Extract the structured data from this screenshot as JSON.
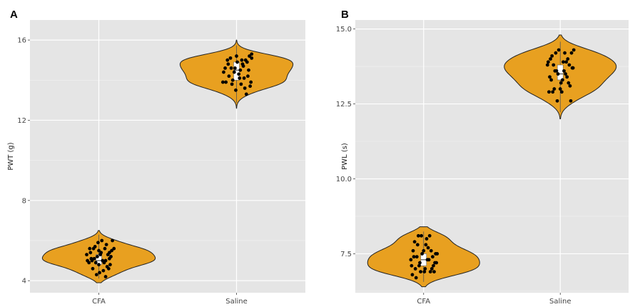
{
  "chart_data": [
    {
      "panel": "A",
      "type": "violin",
      "ylabel": "PWT (g)",
      "xlabel": "",
      "categories": [
        "CFA",
        "Saline"
      ],
      "ylim": [
        3.4,
        17.0
      ],
      "yticks": [
        4,
        8,
        12,
        16
      ],
      "ytick_labels": [
        "4",
        "8",
        "12",
        "16"
      ],
      "grid": true,
      "fill_color": "#e8a020",
      "groups": [
        {
          "name": "CFA",
          "violin_range": [
            3.9,
            6.5
          ],
          "box": {
            "q1": 4.8,
            "median": 5.0,
            "q3": 5.3
          },
          "points": [
            [
              -0.16,
              5.3
            ],
            [
              -0.1,
              5.1
            ],
            [
              -0.07,
              5.6
            ],
            [
              -0.04,
              4.9
            ],
            [
              -0.02,
              5.2
            ],
            [
              0.0,
              4.8
            ],
            [
              0.03,
              5.4
            ],
            [
              0.05,
              5.0
            ],
            [
              0.08,
              5.6
            ],
            [
              0.11,
              4.7
            ],
            [
              0.14,
              5.1
            ],
            [
              0.17,
              5.5
            ],
            [
              -0.13,
              4.9
            ],
            [
              -0.08,
              4.6
            ],
            [
              -0.05,
              5.7
            ],
            [
              0.02,
              5.3
            ],
            [
              0.06,
              4.5
            ],
            [
              0.1,
              5.8
            ],
            [
              0.13,
              4.6
            ],
            [
              0.16,
              5.2
            ],
            [
              -0.15,
              5.0
            ],
            [
              -0.11,
              5.4
            ],
            [
              -0.01,
              5.9
            ],
            [
              0.04,
              6.0
            ],
            [
              0.09,
              5.0
            ],
            [
              0.12,
              5.3
            ],
            [
              -0.06,
              5.1
            ],
            [
              0.01,
              4.4
            ],
            [
              0.07,
              4.9
            ],
            [
              0.15,
              4.8
            ],
            [
              0.18,
              6.0
            ],
            [
              -0.03,
              4.3
            ],
            [
              0.2,
              5.6
            ],
            [
              -0.12,
              5.6
            ],
            [
              0.09,
              4.2
            ],
            [
              0.0,
              5.5
            ],
            [
              -0.09,
              5.0
            ],
            [
              0.14,
              5.4
            ]
          ]
        },
        {
          "name": "Saline",
          "violin_range": [
            12.6,
            16.0
          ],
          "box": {
            "q1": 14.0,
            "median": 14.5,
            "q3": 14.9
          },
          "points": [
            [
              -0.17,
              14.4
            ],
            [
              -0.14,
              13.9
            ],
            [
              -0.11,
              14.8
            ],
            [
              -0.08,
              15.1
            ],
            [
              -0.05,
              14.0
            ],
            [
              -0.02,
              14.6
            ],
            [
              0.0,
              15.2
            ],
            [
              0.03,
              14.3
            ],
            [
              0.06,
              13.8
            ],
            [
              0.09,
              14.7
            ],
            [
              0.12,
              15.0
            ],
            [
              0.15,
              14.2
            ],
            [
              0.18,
              13.7
            ],
            [
              0.2,
              15.3
            ],
            [
              -0.15,
              14.6
            ],
            [
              -0.1,
              14.2
            ],
            [
              -0.06,
              13.8
            ],
            [
              0.01,
              14.9
            ],
            [
              0.05,
              14.5
            ],
            [
              0.1,
              14.1
            ],
            [
              0.14,
              14.9
            ],
            [
              0.17,
              15.2
            ],
            [
              -0.12,
              15.0
            ],
            [
              -0.03,
              14.4
            ],
            [
              0.07,
              15.0
            ],
            [
              0.11,
              13.6
            ],
            [
              0.19,
              13.9
            ],
            [
              -0.01,
              13.5
            ],
            [
              0.13,
              13.3
            ],
            [
              -0.07,
              14.6
            ],
            [
              0.04,
              14.1
            ],
            [
              0.16,
              14.5
            ],
            [
              -0.18,
              13.9
            ],
            [
              0.08,
              14.8
            ],
            [
              0.2,
              15.1
            ]
          ]
        }
      ]
    },
    {
      "panel": "B",
      "type": "violin",
      "ylabel": "PWL (s)",
      "xlabel": "",
      "categories": [
        "CFA",
        "Saline"
      ],
      "ylim": [
        6.2,
        15.3
      ],
      "yticks": [
        7.5,
        10.0,
        12.5,
        15.0
      ],
      "ytick_labels": [
        "7.5",
        "10.0",
        "12.5",
        "15.0"
      ],
      "grid": true,
      "fill_color": "#e8a020",
      "groups": [
        {
          "name": "CFA",
          "violin_range": [
            6.4,
            8.4
          ],
          "box": {
            "q1": 7.1,
            "median": 7.3,
            "q3": 7.5
          },
          "points": [
            [
              -0.17,
              7.3
            ],
            [
              -0.14,
              7.6
            ],
            [
              -0.11,
              7.0
            ],
            [
              -0.08,
              7.8
            ],
            [
              -0.05,
              7.2
            ],
            [
              -0.02,
              7.5
            ],
            [
              0.01,
              6.9
            ],
            [
              0.04,
              8.0
            ],
            [
              0.07,
              7.3
            ],
            [
              0.1,
              7.6
            ],
            [
              0.13,
              7.1
            ],
            [
              0.16,
              7.5
            ],
            [
              -0.15,
              6.8
            ],
            [
              -0.09,
              7.4
            ],
            [
              -0.03,
              8.1
            ],
            [
              0.02,
              7.0
            ],
            [
              0.06,
              7.7
            ],
            [
              0.09,
              6.9
            ],
            [
              0.12,
              7.4
            ],
            [
              0.15,
              7.2
            ],
            [
              -0.12,
              7.9
            ],
            [
              -0.06,
              7.1
            ],
            [
              0.0,
              7.6
            ],
            [
              0.05,
              7.3
            ],
            [
              0.11,
              7.0
            ],
            [
              0.18,
              7.5
            ],
            [
              -0.16,
              7.1
            ],
            [
              -0.04,
              6.9
            ],
            [
              0.08,
              8.1
            ],
            [
              0.14,
              6.9
            ],
            [
              -0.1,
              6.7
            ],
            [
              0.03,
              7.8
            ],
            [
              0.17,
              7.2
            ],
            [
              -0.07,
              8.1
            ],
            [
              -0.13,
              7.4
            ]
          ]
        },
        {
          "name": "Saline",
          "violin_range": [
            12.0,
            14.8
          ],
          "box": {
            "q1": 13.3,
            "median": 13.5,
            "q3": 13.8
          },
          "points": [
            [
              -0.17,
              13.8
            ],
            [
              -0.14,
              13.4
            ],
            [
              -0.11,
              14.1
            ],
            [
              -0.08,
              13.0
            ],
            [
              -0.05,
              13.6
            ],
            [
              -0.02,
              14.3
            ],
            [
              0.01,
              13.2
            ],
            [
              0.04,
              13.9
            ],
            [
              0.07,
              13.5
            ],
            [
              0.1,
              14.0
            ],
            [
              0.13,
              13.1
            ],
            [
              0.16,
              13.7
            ],
            [
              -0.15,
              12.9
            ],
            [
              -0.09,
              13.8
            ],
            [
              -0.03,
              13.5
            ],
            [
              0.02,
              12.9
            ],
            [
              0.06,
              14.2
            ],
            [
              0.09,
              13.4
            ],
            [
              0.12,
              13.8
            ],
            [
              0.15,
              14.2
            ],
            [
              -0.12,
              13.3
            ],
            [
              -0.06,
              14.2
            ],
            [
              0.0,
              13.0
            ],
            [
              0.05,
              13.6
            ],
            [
              0.11,
              13.2
            ],
            [
              0.18,
              14.3
            ],
            [
              -0.16,
              13.9
            ],
            [
              -0.04,
              12.6
            ],
            [
              0.08,
              13.9
            ],
            [
              0.14,
              12.6
            ],
            [
              -0.1,
              12.9
            ],
            [
              0.03,
              13.3
            ],
            [
              0.17,
              13.7
            ],
            [
              -0.07,
              13.6
            ],
            [
              -0.13,
              14.0
            ]
          ]
        }
      ]
    }
  ]
}
